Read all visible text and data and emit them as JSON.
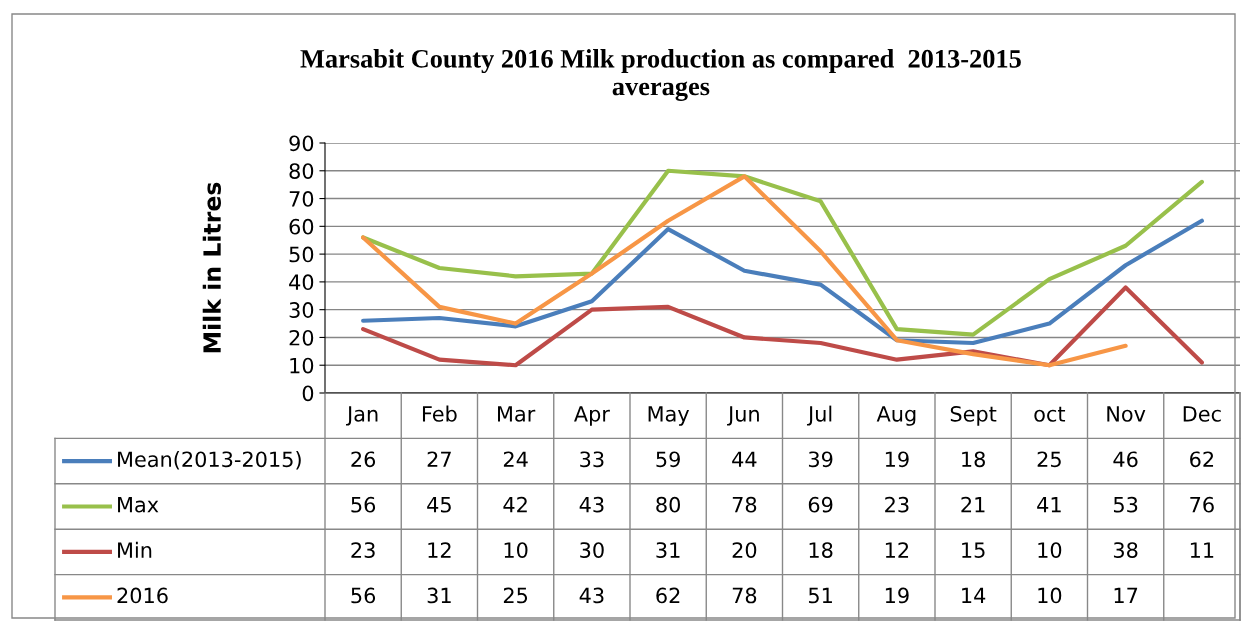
{
  "chart_data": {
    "type": "line",
    "title": "Marsabit County 2016 Milk production as compared  2013-2015\naverages",
    "ylabel": "Milk in Litres",
    "categories": [
      "Jan",
      "Feb",
      "Mar",
      "Apr",
      "May",
      "Jun",
      "Jul",
      "Aug",
      "Sept",
      "oct",
      "Nov",
      "Dec"
    ],
    "series": [
      {
        "name": "Mean(2013-2015)",
        "color": "#4a7ebb",
        "values": [
          26,
          27,
          24,
          33,
          59,
          44,
          39,
          19,
          18,
          25,
          46,
          62
        ]
      },
      {
        "name": "Max",
        "color": "#98c04b",
        "values": [
          56,
          45,
          42,
          43,
          80,
          78,
          69,
          23,
          21,
          41,
          53,
          76
        ]
      },
      {
        "name": "Min",
        "color": "#be4b48",
        "values": [
          23,
          12,
          10,
          30,
          31,
          20,
          18,
          12,
          15,
          10,
          38,
          11
        ]
      },
      {
        "name": "2016",
        "color": "#f79646",
        "values": [
          56,
          31,
          25,
          43,
          62,
          78,
          51,
          19,
          14,
          10,
          17,
          null
        ]
      }
    ],
    "ylim": [
      0,
      90
    ],
    "yticks": [
      0,
      10,
      20,
      30,
      40,
      50,
      60,
      70,
      80,
      90
    ],
    "grid": "y",
    "data_labels": true,
    "marker": "none",
    "legend": "bottom",
    "line_style": "solid"
  }
}
